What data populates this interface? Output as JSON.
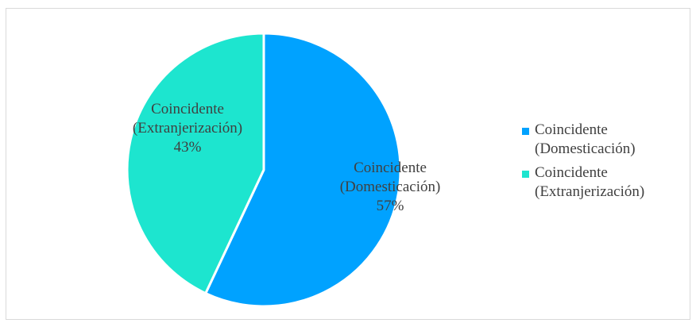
{
  "chart_data": {
    "type": "pie",
    "title": "",
    "slices": [
      {
        "label_line1": "Coincidente",
        "label_line2": "(Domesticación)",
        "value": 57,
        "percent_label": "57%",
        "color": "#00a2ff"
      },
      {
        "label_line1": "Coincidente",
        "label_line2": "(Extranjerización)",
        "value": 43,
        "percent_label": "43%",
        "color": "#1de5cf"
      }
    ],
    "legend_position": "right"
  }
}
